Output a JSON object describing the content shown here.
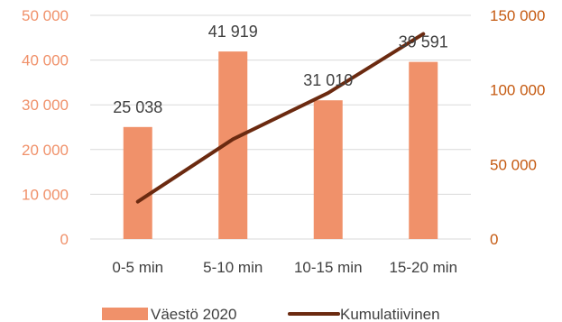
{
  "chart_data": {
    "type": "bar+line",
    "categories": [
      "0-5 min",
      "5-10 min",
      "10-15 min",
      "15-20 min"
    ],
    "series": [
      {
        "name": "Väestö 2020",
        "type": "bar",
        "axis": "left",
        "values": [
          25038,
          41919,
          31010,
          39591
        ],
        "data_labels": [
          "25 038",
          "41 919",
          "31 010",
          "39 591"
        ]
      },
      {
        "name": "Kumulatiivinen",
        "type": "line",
        "axis": "right",
        "values": [
          25038,
          66957,
          97967,
          137558
        ]
      }
    ],
    "y_left": {
      "min": 0,
      "max": 50000,
      "ticks": [
        0,
        10000,
        20000,
        30000,
        40000,
        50000
      ],
      "tick_labels": [
        "0",
        "10 000",
        "20 000",
        "30 000",
        "40 000",
        "50 000"
      ]
    },
    "y_right": {
      "min": 0,
      "max": 150000,
      "ticks": [
        0,
        50000,
        100000,
        150000
      ],
      "tick_labels": [
        "0",
        "50 000",
        "100 000",
        "150 000"
      ]
    },
    "grid": true,
    "legend_position": "bottom",
    "colors": {
      "bar": "#f0916a",
      "line": "#6b2a10",
      "left_axis": "#f0916a",
      "right_axis": "#c55a11",
      "grid": "#d9d9d9",
      "text": "#404040"
    }
  }
}
